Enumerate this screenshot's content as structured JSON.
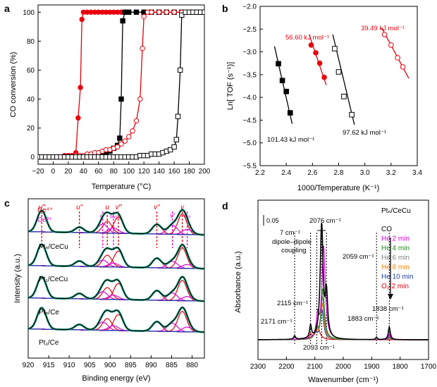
{
  "chart_data": [
    {
      "panel": "a",
      "type": "line",
      "xlabel": "Temperature (°C)",
      "ylabel": "CO conversion (%)",
      "xlim": [
        -20,
        200
      ],
      "ylim": [
        -5,
        105
      ],
      "xticks": [
        -20,
        0,
        20,
        40,
        60,
        80,
        100,
        120,
        140,
        160,
        180,
        200
      ],
      "yticks": [
        0,
        20,
        40,
        60,
        80,
        100
      ],
      "series": [
        {
          "color": "#e8000b",
          "marker": "circle-filled",
          "x": [
            -20,
            -15,
            -10,
            -5,
            0,
            5,
            10,
            15,
            20,
            25,
            30,
            33,
            36,
            38,
            40,
            45,
            50,
            55,
            60,
            65,
            70,
            75,
            80,
            85,
            90,
            95,
            100,
            110,
            120,
            130,
            140,
            150,
            160,
            170,
            180,
            190,
            200
          ],
          "y": [
            0,
            0,
            0,
            0,
            0,
            0,
            0,
            1,
            1,
            1,
            3,
            27,
            48,
            95,
            100,
            100,
            100,
            100,
            100,
            100,
            100,
            100,
            100,
            100,
            100,
            100,
            100,
            100,
            100,
            100,
            100,
            100,
            100,
            100,
            100,
            100,
            100
          ]
        },
        {
          "color": "#000000",
          "marker": "square-filled",
          "x": [
            -20,
            -15,
            -10,
            -5,
            0,
            5,
            10,
            15,
            20,
            25,
            30,
            35,
            40,
            45,
            50,
            55,
            60,
            65,
            70,
            75,
            80,
            85,
            88,
            90,
            92,
            95,
            100,
            110,
            120,
            130,
            140,
            150,
            160,
            170,
            180,
            190,
            200
          ],
          "y": [
            0,
            0,
            0,
            0,
            0,
            0,
            0,
            0,
            0,
            0,
            0,
            0,
            0,
            0,
            0,
            1,
            1,
            2,
            3,
            4,
            6,
            8,
            13,
            40,
            94,
            100,
            100,
            100,
            100,
            100,
            100,
            100,
            100,
            100,
            100,
            100,
            100
          ]
        },
        {
          "color": "#e8000b",
          "marker": "circle-open",
          "x": [
            -20,
            -15,
            -10,
            -5,
            0,
            5,
            10,
            15,
            20,
            25,
            30,
            35,
            40,
            45,
            50,
            55,
            60,
            65,
            70,
            75,
            80,
            85,
            90,
            95,
            100,
            105,
            110,
            115,
            118,
            120,
            125,
            130,
            140,
            150,
            160,
            170,
            180,
            190,
            200
          ],
          "y": [
            0,
            0,
            0,
            0,
            0,
            0,
            0,
            0,
            0,
            0,
            1,
            1,
            1,
            2,
            2,
            3,
            3,
            4,
            5,
            5,
            6,
            7,
            9,
            11,
            14,
            18,
            25,
            40,
            75,
            97,
            100,
            100,
            100,
            100,
            100,
            100,
            100,
            100,
            100
          ]
        },
        {
          "color": "#000000",
          "marker": "square-open",
          "x": [
            -20,
            -15,
            -10,
            -5,
            0,
            5,
            10,
            15,
            20,
            25,
            30,
            35,
            40,
            45,
            50,
            55,
            60,
            65,
            70,
            75,
            80,
            85,
            90,
            95,
            100,
            105,
            110,
            115,
            120,
            125,
            130,
            135,
            140,
            145,
            150,
            155,
            160,
            163,
            165,
            168,
            170,
            175,
            180,
            185,
            190,
            195,
            200
          ],
          "y": [
            0,
            0,
            0,
            0,
            0,
            0,
            0,
            0,
            0,
            0,
            0,
            0,
            0,
            0,
            0,
            0,
            0,
            0,
            0,
            0,
            0,
            0,
            0,
            0,
            0,
            0,
            0,
            1,
            1,
            1,
            2,
            2,
            2,
            3,
            4,
            5,
            7,
            12,
            28,
            60,
            98,
            100,
            100,
            100,
            100,
            100,
            100
          ]
        }
      ]
    },
    {
      "panel": "b",
      "type": "scatter",
      "xlabel": "1000/Temperature (K⁻¹)",
      "ylabel": "Ln[ TOF (s⁻¹)]",
      "xlim": [
        2.2,
        3.4
      ],
      "ylim": [
        -5.5,
        -2.0
      ],
      "xticks": [
        2.2,
        2.4,
        2.6,
        2.8,
        3.0,
        3.2,
        3.4
      ],
      "yticks": [
        -5.5,
        -5.0,
        -4.5,
        -4.0,
        -3.5,
        -3.0,
        -2.5,
        -2.0
      ],
      "series": [
        {
          "color": "#000000",
          "marker": "square-filled",
          "label": "101.43 kJ mol⁻¹",
          "x": [
            2.34,
            2.37,
            2.4,
            2.43
          ],
          "y": [
            -3.26,
            -3.63,
            -3.87,
            -4.34
          ],
          "fit_x": [
            2.31,
            2.445
          ],
          "fit_y": [
            -2.88,
            -4.58
          ]
        },
        {
          "color": "#e8000b",
          "marker": "circle-filled",
          "label": "56.60 kJ mol⁻¹",
          "x": [
            2.59,
            2.625,
            2.655,
            2.69
          ],
          "y": [
            -2.85,
            -3.02,
            -3.25,
            -3.56
          ],
          "fit_x": [
            2.575,
            2.705
          ],
          "fit_y": [
            -2.62,
            -3.73
          ]
        },
        {
          "color": "#000000",
          "marker": "square-open",
          "label": "97.62 kJ mol⁻¹",
          "x": [
            2.77,
            2.8,
            2.84,
            2.9
          ],
          "y": [
            -2.93,
            -3.44,
            -3.98,
            -4.38
          ],
          "fit_x": [
            2.755,
            2.92
          ],
          "fit_y": [
            -2.62,
            -4.6
          ]
        },
        {
          "color": "#e8000b",
          "marker": "circle-open",
          "label": "39.49 kJ mol⁻¹",
          "x": [
            3.15,
            3.2,
            3.25,
            3.29
          ],
          "y": [
            -2.62,
            -2.85,
            -3.13,
            -3.33
          ],
          "fit_x": [
            3.13,
            3.335
          ],
          "fit_y": [
            -2.48,
            -3.58
          ]
        }
      ]
    },
    {
      "panel": "c",
      "type": "line",
      "xlabel": "Binding energy (eV)",
      "ylabel": "Intensity (a.u.)",
      "xlim": [
        920,
        877
      ],
      "xticks": [
        920,
        915,
        910,
        905,
        900,
        895,
        890,
        885,
        880
      ],
      "legend": [
        "Ce⁴⁺",
        "Ce³⁺"
      ],
      "peak_labels": [
        {
          "text": "u‴",
          "x": 916.7,
          "color": "#e8000b"
        },
        {
          "text": "u″",
          "x": 907.5,
          "color": "#e8000b"
        },
        {
          "text": "u",
          "x": 900.7,
          "color": "#e8000b"
        },
        {
          "text": "u′",
          "x": 901.8,
          "color": "#e000e0"
        },
        {
          "text": "u₀",
          "x": 899.2,
          "color": "#e000e0"
        },
        {
          "text": "v‴",
          "x": 898.0,
          "color": "#e8000b"
        },
        {
          "text": "v″",
          "x": 888.6,
          "color": "#e8000b"
        },
        {
          "text": "v′",
          "x": 884.8,
          "color": "#e000e0"
        },
        {
          "text": "v",
          "x": 882.4,
          "color": "#e8000b"
        },
        {
          "text": "v₀",
          "x": 881.2,
          "color": "#e000e0"
        }
      ],
      "spectra": [
        "Ptₙ/CeCu",
        "Pt₁/CeCu",
        "Ptₙ/Ce",
        "Pt₁/Ce"
      ]
    },
    {
      "panel": "d",
      "type": "line",
      "xlabel": "Wavenumber (cm⁻¹)",
      "ylabel": "Absorbance (a.u.)",
      "xlim": [
        2300,
        1700
      ],
      "xticks": [
        2300,
        2200,
        2100,
        2000,
        1900,
        1800,
        1700
      ],
      "scale_bar": "0.05",
      "sample": "Ptₙ/CeCu",
      "legend": [
        {
          "label": "CO",
          "color": "#000000"
        },
        {
          "label": "He 2 min",
          "color": "#e000e0"
        },
        {
          "label": "He 4 min",
          "color": "#1a8c1a"
        },
        {
          "label": "He 6 min",
          "color": "#7f7f7f"
        },
        {
          "label": "He 8 min",
          "color": "#ff8000"
        },
        {
          "label": "He 10 min",
          "color": "#1f3fa8"
        },
        {
          "label": "O₂ 2 min",
          "color": "#e8000b"
        }
      ],
      "annotations": [
        "2076 cm⁻¹",
        "7 cm⁻¹",
        "dipole–dipole",
        "coupling",
        "2059 cm⁻¹",
        "2115 cm⁻¹",
        "2171 cm⁻¹",
        "2093 cm⁻¹",
        "1883 cm⁻¹",
        "1838 cm⁻¹"
      ],
      "series": [
        {
          "color": "#000000",
          "peaks": [
            [
              2076,
              0.27,
              12
            ],
            [
              2059,
              0.1,
              10
            ],
            [
              2115,
              0.03,
              8
            ],
            [
              2171,
              0.008,
              8
            ],
            [
              1838,
              0.03,
              8
            ],
            [
              1883,
              0.006,
              6
            ]
          ]
        },
        {
          "color": "#e000e0",
          "peaks": [
            [
              2069,
              0.22,
              14
            ],
            [
              2090,
              0.05,
              10
            ],
            [
              1838,
              0.014,
              8
            ]
          ]
        },
        {
          "color": "#1a8c1a",
          "peaks": [
            [
              2072,
              0.12,
              14
            ],
            [
              2095,
              0.03,
              10
            ],
            [
              1838,
              0.008,
              8
            ]
          ]
        },
        {
          "color": "#7f7f7f",
          "peaks": [
            [
              2073,
              0.1,
              14
            ],
            [
              2096,
              0.025,
              10
            ],
            [
              1838,
              0.006,
              8
            ]
          ]
        },
        {
          "color": "#ff8000",
          "peaks": [
            [
              2074,
              0.085,
              14
            ],
            [
              2097,
              0.02,
              10
            ],
            [
              1838,
              0.005,
              8
            ]
          ]
        },
        {
          "color": "#1f3fa8",
          "peaks": [
            [
              2075,
              0.07,
              14
            ],
            [
              2098,
              0.018,
              10
            ],
            [
              1838,
              0.004,
              8
            ]
          ]
        },
        {
          "color": "#e8000b",
          "peaks": [
            [
              2090,
              0.03,
              18
            ],
            [
              2115,
              0.012,
              10
            ]
          ]
        }
      ]
    }
  ]
}
